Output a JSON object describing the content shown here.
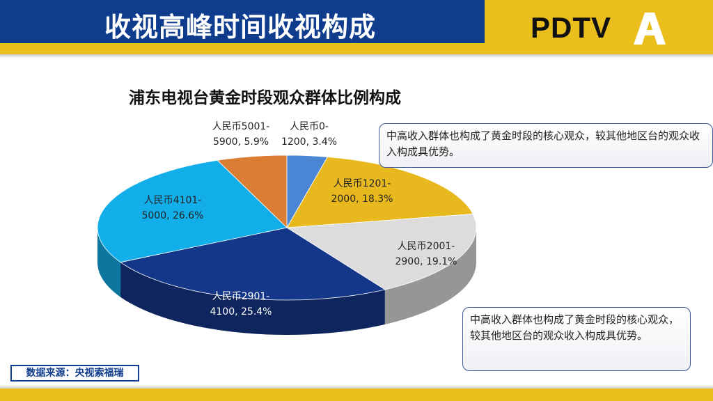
{
  "header": {
    "title": "收视高峰时间收视构成",
    "logo_text": "PDTV",
    "logo_letter": "A"
  },
  "colors": {
    "header_blue": "#0f3c8c",
    "accent_yellow": "#e9be1d"
  },
  "chart_data": {
    "type": "pie",
    "title": "浦东电视台黄金时段观众群体比例构成",
    "slices": [
      {
        "label_line1": "人民币0-",
        "label_line2": "1200, 3.4%",
        "value": 3.4,
        "color": "#4a86d4"
      },
      {
        "label_line1": "人民币1201-",
        "label_line2": "2000, 18.3%",
        "value": 18.3,
        "color": "#e8b91f"
      },
      {
        "label_line1": "人民币2001-",
        "label_line2": "2900, 19.1%",
        "value": 19.1,
        "color": "#dcdcdc"
      },
      {
        "label_line1": "人民币2901-",
        "label_line2": "4100, 25.4%",
        "value": 25.4,
        "color": "#15378a"
      },
      {
        "label_line1": "人民币4101-",
        "label_line2": "5000, 26.6%",
        "value": 26.6,
        "color": "#12aeea"
      },
      {
        "label_line1": "人民币5001-",
        "label_line2": "5900, 5.9%",
        "value": 5.9,
        "color": "#dc7d34"
      }
    ]
  },
  "callouts": [
    {
      "text": "中高收入群体也构成了黄金时段的核心观众，较其他地区台的观众收入构成具优势。"
    },
    {
      "text": "中高收入群体也构成了黄金时段的核心观众，较其他地区台的观众收入构成具优势。"
    }
  ],
  "source": "数据来源：央视索福瑞"
}
